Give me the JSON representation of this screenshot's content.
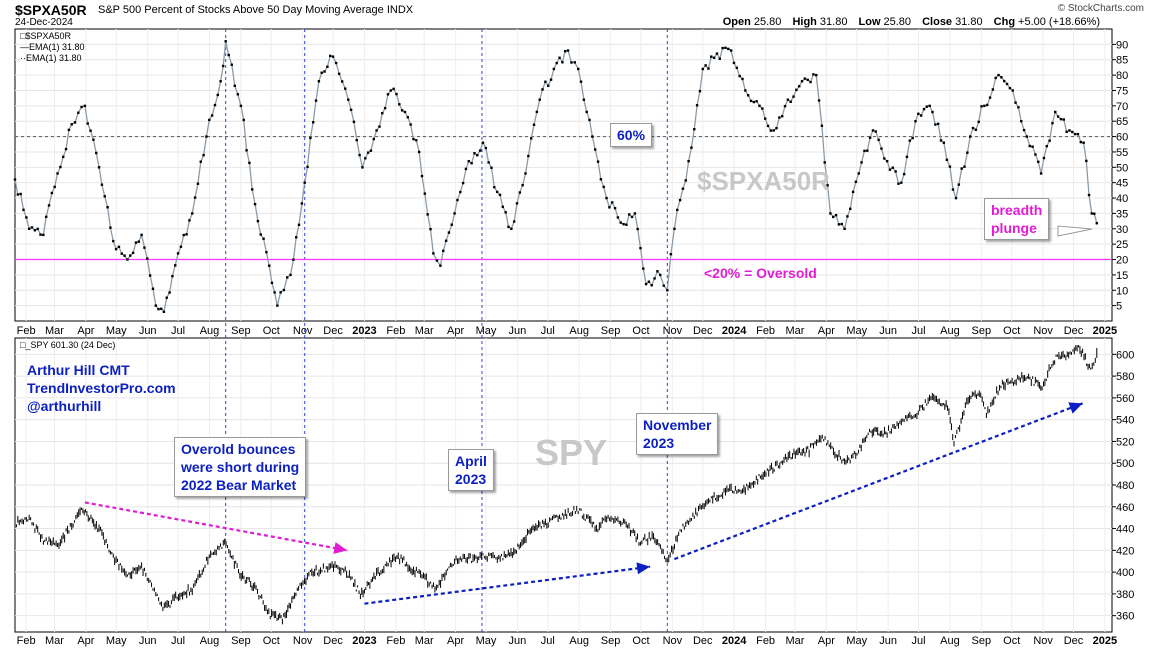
{
  "header": {
    "symbol": "$SPXA50R",
    "description": "S&P 500 Percent of Stocks Above 50 Day Moving Average INDX",
    "date": "24-Dec-2024",
    "credit": "© StockCharts.com",
    "open_label": "Open",
    "open": "25.80",
    "high_label": "High",
    "high": "31.80",
    "low_label": "Low",
    "low": "25.80",
    "close_label": "Close",
    "close": "31.80",
    "chg_label": "Chg",
    "chg": "+5.00 (+18.66%)"
  },
  "legend_top": {
    "symbol": "$SPXA50R",
    "ema1": "EMA(1) 31.80",
    "ema2": "EMA(1) 31.80"
  },
  "legend_bottom": {
    "label": "_SPY 601.30 (24 Dec)"
  },
  "annotations": {
    "author_line1": "Arthur Hill CMT",
    "author_line2": "TrendInvestorPro.com",
    "author_line3": "@arthurhill",
    "bounce_box": [
      "Overold bounces",
      "were short during",
      "2022 Bear Market"
    ],
    "april_box": [
      "April",
      "2023"
    ],
    "november_box": [
      "November",
      "2023"
    ],
    "sixty_box": "60%",
    "breadth_box": [
      "breadth",
      "plunge"
    ],
    "oversold": "<20% = Oversold",
    "watermark_top": "$SPXA50R",
    "watermark_bottom": "SPY"
  },
  "colors": {
    "indicator_line": "#8c9aa6",
    "markers": "#000000",
    "oversold_line": "#ff33ff",
    "annotation_blue": "#0b1fc2",
    "magenta_text": "#e21bd5",
    "vertical_lines": "#3344cc",
    "dotted_60": "#555555",
    "price_bars": "#000000"
  },
  "chart_data": [
    {
      "type": "line",
      "title": "$SPXA50R",
      "ylim": [
        0,
        95
      ],
      "y_ticks": [
        5,
        10,
        15,
        20,
        25,
        30,
        35,
        40,
        45,
        50,
        55,
        60,
        65,
        70,
        75,
        80,
        85,
        90
      ],
      "x_tick_labels": [
        "Feb",
        "Mar",
        "Apr",
        "May",
        "Jun",
        "Jul",
        "Aug",
        "Sep",
        "Oct",
        "Nov",
        "Dec",
        "2023",
        "Feb",
        "Mar",
        "Apr",
        "May",
        "Jun",
        "Jul",
        "Aug",
        "Sep",
        "Oct",
        "Nov",
        "Dec",
        "2024",
        "Feb",
        "Mar",
        "Apr",
        "May",
        "Jun",
        "Jul",
        "Aug",
        "Sep",
        "Oct",
        "Nov",
        "Dec",
        "2025"
      ],
      "x_start": "2022-01-21",
      "x_end": "2025-01-08",
      "reference_lines": [
        60,
        20
      ],
      "series": [
        {
          "name": "$SPXA50R",
          "x": [
            "2022-01-21",
            "2022-02-04",
            "2022-02-18",
            "2022-03-04",
            "2022-03-18",
            "2022-03-31",
            "2022-04-14",
            "2022-04-28",
            "2022-05-12",
            "2022-05-26",
            "2022-06-09",
            "2022-06-17",
            "2022-07-01",
            "2022-07-15",
            "2022-07-29",
            "2022-08-12",
            "2022-08-17",
            "2022-09-01",
            "2022-09-15",
            "2022-09-29",
            "2022-10-07",
            "2022-10-20",
            "2022-11-03",
            "2022-11-17",
            "2022-12-01",
            "2022-12-16",
            "2022-12-30",
            "2023-01-13",
            "2023-01-27",
            "2023-02-10",
            "2023-02-24",
            "2023-03-10",
            "2023-03-17",
            "2023-03-31",
            "2023-04-14",
            "2023-04-28",
            "2023-05-12",
            "2023-05-26",
            "2023-06-09",
            "2023-06-23",
            "2023-07-07",
            "2023-07-21",
            "2023-07-31",
            "2023-08-14",
            "2023-08-28",
            "2023-09-11",
            "2023-09-25",
            "2023-10-06",
            "2023-10-20",
            "2023-10-27",
            "2023-11-03",
            "2023-11-17",
            "2023-12-01",
            "2023-12-15",
            "2023-12-29",
            "2024-01-12",
            "2024-01-26",
            "2024-02-09",
            "2024-02-23",
            "2024-03-08",
            "2024-03-22",
            "2024-04-05",
            "2024-04-19",
            "2024-05-03",
            "2024-05-17",
            "2024-05-31",
            "2024-06-14",
            "2024-06-28",
            "2024-07-12",
            "2024-07-26",
            "2024-08-07",
            "2024-08-21",
            "2024-09-04",
            "2024-09-18",
            "2024-10-02",
            "2024-10-16",
            "2024-10-30",
            "2024-11-13",
            "2024-11-27",
            "2024-12-11",
            "2024-12-19",
            "2024-12-24"
          ],
          "y": [
            46,
            30,
            28,
            48,
            64,
            70,
            50,
            26,
            20,
            28,
            5,
            3,
            22,
            35,
            60,
            78,
            91,
            70,
            38,
            18,
            5,
            15,
            45,
            78,
            86,
            72,
            50,
            62,
            75,
            68,
            55,
            22,
            18,
            35,
            52,
            58,
            42,
            30,
            48,
            72,
            82,
            88,
            82,
            60,
            40,
            32,
            35,
            12,
            15,
            10,
            30,
            52,
            82,
            87,
            88,
            75,
            70,
            62,
            72,
            78,
            80,
            35,
            30,
            48,
            62,
            52,
            45,
            65,
            70,
            58,
            40,
            60,
            70,
            80,
            75,
            60,
            48,
            68,
            62,
            58,
            35,
            31.8
          ]
        }
      ]
    },
    {
      "type": "ohlc",
      "title": "SPY",
      "ylim": [
        345,
        615
      ],
      "y_ticks": [
        360,
        380,
        400,
        420,
        440,
        460,
        480,
        500,
        520,
        540,
        560,
        580,
        600
      ],
      "x_tick_labels": [
        "Feb",
        "Mar",
        "Apr",
        "May",
        "Jun",
        "Jul",
        "Aug",
        "Sep",
        "Oct",
        "Nov",
        "Dec",
        "2023",
        "Feb",
        "Mar",
        "Apr",
        "May",
        "Jun",
        "Jul",
        "Aug",
        "Sep",
        "Oct",
        "Nov",
        "Dec",
        "2024",
        "Feb",
        "Mar",
        "Apr",
        "May",
        "Jun",
        "Jul",
        "Aug",
        "Sep",
        "Oct",
        "Nov",
        "Dec",
        "2025"
      ],
      "x_start": "2022-01-21",
      "x_end": "2025-01-08",
      "last": 601.3,
      "series": [
        {
          "name": "_SPY",
          "x": [
            "2022-01-21",
            "2022-02-04",
            "2022-02-18",
            "2022-03-04",
            "2022-03-18",
            "2022-03-29",
            "2022-04-14",
            "2022-04-28",
            "2022-05-12",
            "2022-05-26",
            "2022-06-16",
            "2022-06-30",
            "2022-07-15",
            "2022-07-29",
            "2022-08-16",
            "2022-08-31",
            "2022-09-16",
            "2022-09-30",
            "2022-10-12",
            "2022-10-28",
            "2022-11-10",
            "2022-11-30",
            "2022-12-13",
            "2022-12-28",
            "2023-01-13",
            "2023-02-02",
            "2023-02-24",
            "2023-03-13",
            "2023-03-31",
            "2023-04-14",
            "2023-04-28",
            "2023-05-15",
            "2023-05-31",
            "2023-06-15",
            "2023-06-30",
            "2023-07-14",
            "2023-07-31",
            "2023-08-18",
            "2023-08-31",
            "2023-09-15",
            "2023-09-29",
            "2023-10-12",
            "2023-10-27",
            "2023-11-10",
            "2023-11-24",
            "2023-12-15",
            "2023-12-29",
            "2024-01-12",
            "2024-01-31",
            "2024-02-15",
            "2024-02-29",
            "2024-03-15",
            "2024-03-28",
            "2024-04-19",
            "2024-04-30",
            "2024-05-15",
            "2024-05-31",
            "2024-06-14",
            "2024-06-28",
            "2024-07-16",
            "2024-07-31",
            "2024-08-05",
            "2024-08-19",
            "2024-08-30",
            "2024-09-06",
            "2024-09-19",
            "2024-09-30",
            "2024-10-15",
            "2024-10-31",
            "2024-11-11",
            "2024-11-29",
            "2024-12-06",
            "2024-12-18",
            "2024-12-24"
          ],
          "y": [
            445,
            448,
            430,
            425,
            443,
            458,
            440,
            415,
            395,
            405,
            366,
            377,
            385,
            410,
            428,
            398,
            385,
            360,
            356,
            385,
            400,
            405,
            402,
            380,
            398,
            415,
            398,
            385,
            410,
            412,
            414,
            412,
            420,
            440,
            445,
            452,
            457,
            440,
            450,
            445,
            428,
            432,
            412,
            440,
            455,
            470,
            475,
            477,
            490,
            500,
            508,
            512,
            523,
            500,
            508,
            530,
            528,
            540,
            545,
            562,
            550,
            517,
            560,
            563,
            545,
            570,
            575,
            580,
            570,
            595,
            602,
            607,
            586,
            601.3
          ]
        }
      ]
    }
  ]
}
